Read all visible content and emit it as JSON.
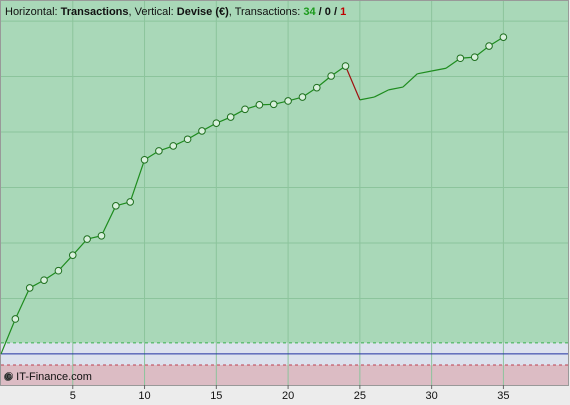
{
  "chart_data": {
    "type": "line",
    "title_parts": [
      {
        "text": "Horizontal: "
      },
      {
        "text": "Transactions",
        "bold": true
      },
      {
        "text": ", Vertical: "
      },
      {
        "text": "Devise (€)",
        "bold": true
      },
      {
        "text": ", Transactions: "
      },
      {
        "text": "34",
        "bold": true,
        "color": "#1a9a1a"
      },
      {
        "text": " / ",
        "bold": true
      },
      {
        "text": "0",
        "bold": true
      },
      {
        "text": " / ",
        "bold": true
      },
      {
        "text": "1",
        "bold": true,
        "color": "#c00000"
      }
    ],
    "watermark": "© IT-Finance.com",
    "x": [
      0,
      1,
      2,
      3,
      4,
      5,
      6,
      7,
      8,
      9,
      10,
      11,
      12,
      13,
      14,
      15,
      16,
      17,
      18,
      19,
      20,
      21,
      22,
      23,
      24,
      25,
      26,
      27,
      28,
      29,
      30,
      31,
      32,
      33,
      34,
      35
    ],
    "series": [
      {
        "color": "#1e8c1e",
        "loss_color": "#a01010",
        "values": [
          0,
          0.63,
          1.19,
          1.33,
          1.5,
          1.78,
          2.07,
          2.13,
          2.67,
          2.74,
          3.5,
          3.66,
          3.75,
          3.87,
          4.02,
          4.16,
          4.27,
          4.41,
          4.49,
          4.5,
          4.56,
          4.63,
          4.8,
          5.01,
          5.19,
          4.58,
          4.63,
          4.76,
          4.81,
          5.05,
          5.1,
          5.15,
          5.33,
          5.35,
          5.55,
          5.71
        ],
        "loss_segments": [
          25
        ],
        "markers": [
          false,
          true,
          true,
          true,
          true,
          true,
          true,
          true,
          true,
          true,
          true,
          true,
          true,
          true,
          true,
          true,
          true,
          true,
          true,
          true,
          true,
          true,
          true,
          true,
          true,
          false,
          false,
          false,
          false,
          false,
          false,
          false,
          true,
          true,
          true,
          true
        ]
      }
    ],
    "xlim": [
      0,
      39.5
    ],
    "xticks": [
      5,
      10,
      15,
      20,
      25,
      30,
      35
    ],
    "ylim": [
      -0.56,
      6.38
    ],
    "yticks": [
      1,
      2,
      3,
      4,
      5,
      6
    ],
    "grid": true,
    "reference_lines": [
      {
        "value": 0.2,
        "color": "#3cb050",
        "dashed": true
      },
      {
        "value": 0,
        "color": "#2030a0",
        "dashed": false
      },
      {
        "value": -0.2,
        "color": "#c04050",
        "dashed": true
      }
    ],
    "band_colors": {
      "above": "#a9d8b8",
      "between": "#dde2ee",
      "below": "#dcbcc4"
    }
  }
}
